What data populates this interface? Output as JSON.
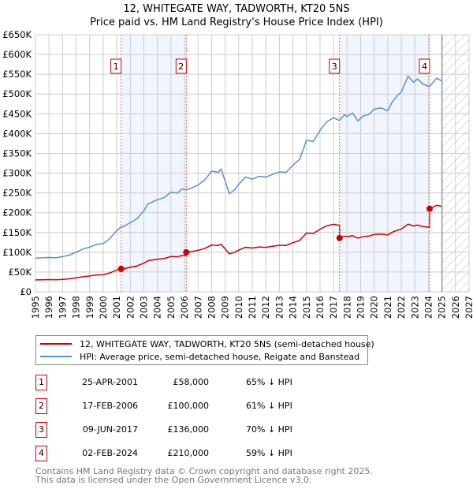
{
  "chart_data": {
    "type": "line",
    "title": "12, WHITEGATE WAY, TADWORTH, KT20 5NS",
    "subtitle": "Price paid vs. HM Land Registry's House Price Index (HPI)",
    "xlim": [
      1995,
      2027
    ],
    "ylim": [
      0,
      650000
    ],
    "x_ticks": [
      "1995",
      "1996",
      "1997",
      "1998",
      "1999",
      "2000",
      "2001",
      "2002",
      "2003",
      "2004",
      "2005",
      "2006",
      "2007",
      "2008",
      "2009",
      "2010",
      "2011",
      "2012",
      "2013",
      "2014",
      "2015",
      "2016",
      "2017",
      "2018",
      "2019",
      "2020",
      "2021",
      "2022",
      "2023",
      "2024",
      "2025",
      "2026",
      "2027"
    ],
    "y_ticks": [
      {
        "v": 0,
        "label": "£0"
      },
      {
        "v": 50000,
        "label": "£50K"
      },
      {
        "v": 100000,
        "label": "£100K"
      },
      {
        "v": 150000,
        "label": "£150K"
      },
      {
        "v": 200000,
        "label": "£200K"
      },
      {
        "v": 250000,
        "label": "£250K"
      },
      {
        "v": 300000,
        "label": "£300K"
      },
      {
        "v": 350000,
        "label": "£350K"
      },
      {
        "v": 400000,
        "label": "£400K"
      },
      {
        "v": 450000,
        "label": "£450K"
      },
      {
        "v": 500000,
        "label": "£500K"
      },
      {
        "v": 550000,
        "label": "£550K"
      },
      {
        "v": 600000,
        "label": "£600K"
      },
      {
        "v": 650000,
        "label": "£650K"
      }
    ],
    "grid": true,
    "forecast_hatch_from": 2025,
    "shaded_ranges": [
      [
        2001.32,
        2006.13
      ],
      [
        2017.44,
        2024.09
      ]
    ],
    "series": [
      {
        "name": "12, WHITEGATE WAY, TADWORTH, KT20 5NS (semi-detached house)",
        "color": "#cc0000",
        "points": [
          [
            1995,
            30100
          ],
          [
            1995.5,
            30400
          ],
          [
            1996,
            30800
          ],
          [
            1996.5,
            30400
          ],
          [
            1997,
            31500
          ],
          [
            1997.5,
            32900
          ],
          [
            1998,
            35400
          ],
          [
            1998.5,
            38200
          ],
          [
            1999,
            40000
          ],
          [
            1999.5,
            42500
          ],
          [
            2000,
            43200
          ],
          [
            2000.5,
            47800
          ],
          [
            2001,
            54900
          ],
          [
            2001.32,
            58000
          ],
          [
            2001.5,
            58400
          ],
          [
            2002,
            62000
          ],
          [
            2002.5,
            65500
          ],
          [
            2003,
            72600
          ],
          [
            2003.3,
            78600
          ],
          [
            2003.5,
            79700
          ],
          [
            2004,
            82500
          ],
          [
            2004.5,
            84300
          ],
          [
            2005,
            89200
          ],
          [
            2005.5,
            88500
          ],
          [
            2005.8,
            92000
          ],
          [
            2006.13,
            91300
          ],
          [
            2006.13,
            100000
          ],
          [
            2006.5,
            101700
          ],
          [
            2007,
            104800
          ],
          [
            2007.5,
            109800
          ],
          [
            2008,
            118300
          ],
          [
            2008.5,
            117200
          ],
          [
            2008.7,
            120300
          ],
          [
            2009,
            108600
          ],
          [
            2009.3,
            96200
          ],
          [
            2009.7,
            100100
          ],
          [
            2010,
            105500
          ],
          [
            2010.5,
            112500
          ],
          [
            2011,
            110600
          ],
          [
            2011.5,
            113300
          ],
          [
            2012,
            112500
          ],
          [
            2012.5,
            115200
          ],
          [
            2013,
            117600
          ],
          [
            2013.5,
            117200
          ],
          [
            2014,
            124200
          ],
          [
            2014.5,
            130000
          ],
          [
            2015,
            148600
          ],
          [
            2015.5,
            147400
          ],
          [
            2016,
            158300
          ],
          [
            2016.5,
            166800
          ],
          [
            2017,
            170700
          ],
          [
            2017.44,
            168000
          ],
          [
            2017.44,
            136000
          ],
          [
            2017.8,
            140700
          ],
          [
            2018,
            139100
          ],
          [
            2018.4,
            141900
          ],
          [
            2018.8,
            135600
          ],
          [
            2019.2,
            139700
          ],
          [
            2019.6,
            140700
          ],
          [
            2020,
            145100
          ],
          [
            2020.5,
            146000
          ],
          [
            2021,
            143800
          ],
          [
            2021.3,
            150100
          ],
          [
            2021.7,
            155700
          ],
          [
            2022,
            158600
          ],
          [
            2022.5,
            171100
          ],
          [
            2022.9,
            166400
          ],
          [
            2023.2,
            168900
          ],
          [
            2023.6,
            164900
          ],
          [
            2024.09,
            163000
          ],
          [
            2024.09,
            210000
          ],
          [
            2024.6,
            218700
          ],
          [
            2025,
            215900
          ]
        ]
      },
      {
        "name": "HPI: Average price, semi-detached house, Reigate and Banstead",
        "color": "#5b8fd6",
        "points": [
          [
            1995,
            85000
          ],
          [
            1995.5,
            86000
          ],
          [
            1996,
            87000
          ],
          [
            1996.5,
            86000
          ],
          [
            1997,
            89000
          ],
          [
            1997.5,
            93000
          ],
          [
            1998,
            100000
          ],
          [
            1998.5,
            108000
          ],
          [
            1999,
            113000
          ],
          [
            1999.5,
            120000
          ],
          [
            2000,
            122000
          ],
          [
            2000.5,
            135000
          ],
          [
            2001,
            155000
          ],
          [
            2001.32,
            164000
          ],
          [
            2001.5,
            165000
          ],
          [
            2002,
            175000
          ],
          [
            2002.5,
            185000
          ],
          [
            2003,
            205000
          ],
          [
            2003.3,
            222000
          ],
          [
            2003.5,
            225000
          ],
          [
            2004,
            233000
          ],
          [
            2004.5,
            238000
          ],
          [
            2005,
            252000
          ],
          [
            2005.5,
            250000
          ],
          [
            2005.8,
            260000
          ],
          [
            2006.13,
            258000
          ],
          [
            2006.5,
            262000
          ],
          [
            2007,
            270000
          ],
          [
            2007.5,
            283000
          ],
          [
            2008,
            305000
          ],
          [
            2008.5,
            302000
          ],
          [
            2008.7,
            310000
          ],
          [
            2009,
            280000
          ],
          [
            2009.3,
            248000
          ],
          [
            2009.7,
            258000
          ],
          [
            2010,
            272000
          ],
          [
            2010.5,
            290000
          ],
          [
            2011,
            285000
          ],
          [
            2011.5,
            292000
          ],
          [
            2012,
            290000
          ],
          [
            2012.5,
            297000
          ],
          [
            2013,
            303000
          ],
          [
            2013.5,
            302000
          ],
          [
            2014,
            320000
          ],
          [
            2014.5,
            335000
          ],
          [
            2015,
            383000
          ],
          [
            2015.5,
            380000
          ],
          [
            2016,
            408000
          ],
          [
            2016.5,
            430000
          ],
          [
            2017,
            440000
          ],
          [
            2017.44,
            433000
          ],
          [
            2017.8,
            448000
          ],
          [
            2018,
            443000
          ],
          [
            2018.4,
            452000
          ],
          [
            2018.8,
            432000
          ],
          [
            2019.2,
            445000
          ],
          [
            2019.6,
            448000
          ],
          [
            2020,
            462000
          ],
          [
            2020.5,
            465000
          ],
          [
            2021,
            458000
          ],
          [
            2021.3,
            478000
          ],
          [
            2021.7,
            496000
          ],
          [
            2022,
            505000
          ],
          [
            2022.5,
            545000
          ],
          [
            2022.9,
            530000
          ],
          [
            2023.2,
            538000
          ],
          [
            2023.6,
            525000
          ],
          [
            2024.09,
            519000
          ],
          [
            2024.6,
            540000
          ],
          [
            2025,
            533000
          ]
        ]
      }
    ],
    "sales": [
      {
        "n": "1",
        "x": 2001.32,
        "value": 58000,
        "date": "25-APR-2001",
        "price": "£58,000",
        "hpi": "65% ↓ HPI"
      },
      {
        "n": "2",
        "x": 2006.13,
        "value": 100000,
        "date": "17-FEB-2006",
        "price": "£100,000",
        "hpi": "61% ↓ HPI"
      },
      {
        "n": "3",
        "x": 2017.44,
        "value": 136000,
        "date": "09-JUN-2017",
        "price": "£136,000",
        "hpi": "70% ↓ HPI"
      },
      {
        "n": "4",
        "x": 2024.09,
        "value": 210000,
        "date": "02-FEB-2024",
        "price": "£210,000",
        "hpi": "59% ↓ HPI"
      }
    ]
  },
  "legend": {
    "property": "12, WHITEGATE WAY, TADWORTH, KT20 5NS (semi-detached house)",
    "hpi": "HPI: Average price, semi-detached house, Reigate and Banstead"
  },
  "footer": {
    "line1": "Contains HM Land Registry data © Crown copyright and database right 2025.",
    "line2": "This data is licensed under the Open Government Licence v3.0."
  }
}
